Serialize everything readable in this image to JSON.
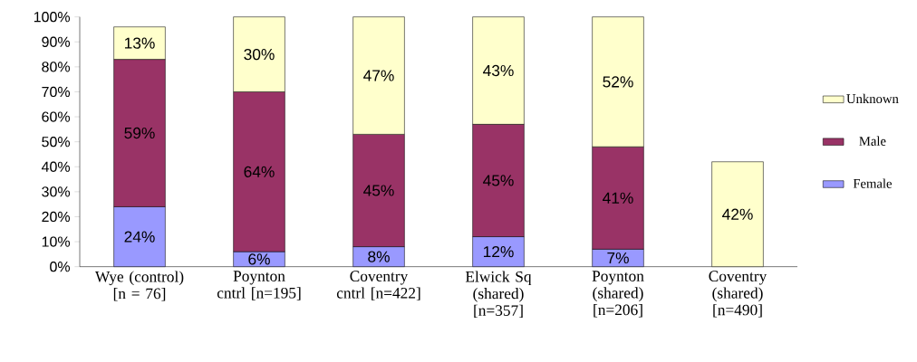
{
  "chart_data": {
    "type": "bar",
    "stacked": true,
    "categories": [
      "Wye (control) [n = 76]",
      "Poynton cntrl [n=195]",
      "Coventry cntrl [n=422]",
      "Elwick Sq (shared) [n=357]",
      "Poynton (shared) [n=206]",
      "Coventry (shared) [n=490]"
    ],
    "series": [
      {
        "name": "Female",
        "color": "#9999ff",
        "values": [
          24,
          6,
          8,
          12,
          7,
          null
        ],
        "value_labels": [
          "24%",
          "6%",
          "8%",
          "12%",
          "7%",
          null
        ]
      },
      {
        "name": "Male",
        "color": "#993366",
        "values": [
          59,
          64,
          45,
          45,
          41,
          null
        ],
        "value_labels": [
          "59%",
          "64%",
          "45%",
          "45%",
          "41%",
          null
        ]
      },
      {
        "name": "Unknown",
        "color": "#ffffcc",
        "values": [
          13,
          30,
          47,
          43,
          52,
          42
        ],
        "value_labels": [
          "13%",
          "30%",
          "47%",
          "43%",
          "52%",
          "42%"
        ]
      }
    ],
    "ylim": [
      0,
      100
    ],
    "yticks": [
      {
        "value": 0,
        "label": "0%"
      },
      {
        "value": 10,
        "label": "10%"
      },
      {
        "value": 20,
        "label": "20%"
      },
      {
        "value": 30,
        "label": "30%"
      },
      {
        "value": 40,
        "label": "40%"
      },
      {
        "value": 50,
        "label": "50%"
      },
      {
        "value": 60,
        "label": "60%"
      },
      {
        "value": 70,
        "label": "70%"
      },
      {
        "value": 80,
        "label": "80%"
      },
      {
        "value": 90,
        "label": "90%"
      },
      {
        "value": 100,
        "label": "100%"
      }
    ],
    "legend": "right",
    "grid": false
  }
}
